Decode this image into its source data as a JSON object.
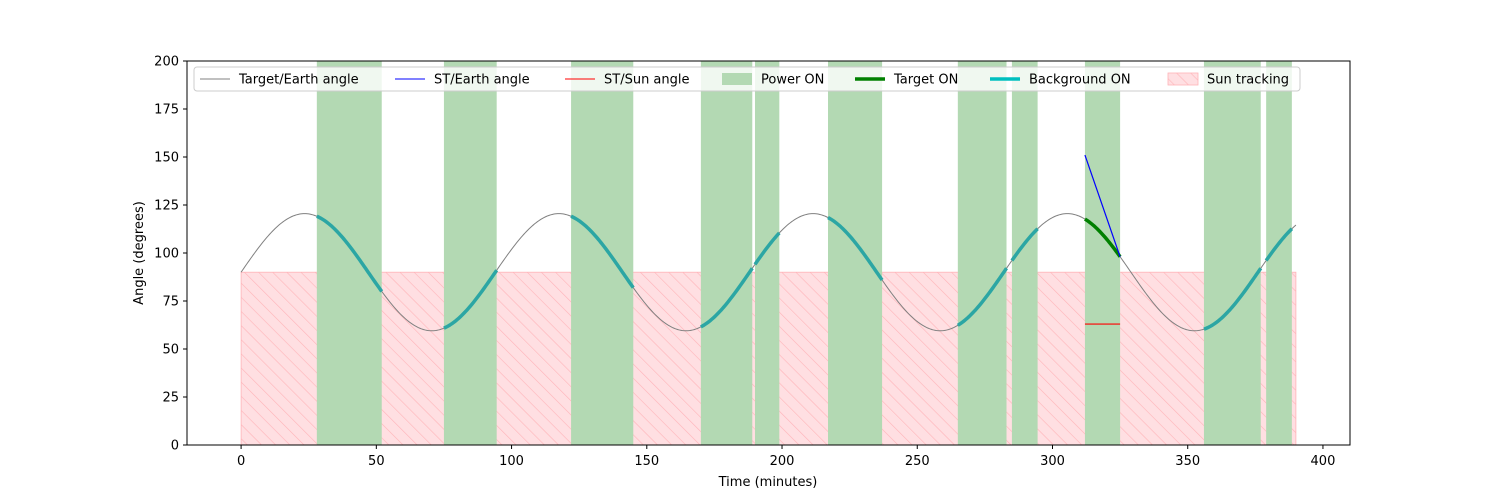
{
  "chart_data": {
    "type": "line",
    "xlabel": "Time (minutes)",
    "ylabel": "Angle (degrees)",
    "xlim": [
      -20,
      410
    ],
    "ylim": [
      0,
      200
    ],
    "xticks": [
      0,
      50,
      100,
      150,
      200,
      250,
      300,
      350,
      400
    ],
    "yticks": [
      0,
      25,
      50,
      75,
      100,
      125,
      150,
      175,
      200
    ],
    "grid": false,
    "legend_position": "top",
    "target_earth_curve": {
      "mean": 90,
      "amplitude": 30.5,
      "period": 94,
      "phase_shift": 0,
      "x_start": 0,
      "x_end": 390,
      "color": "#808080"
    },
    "power_on_intervals": [
      [
        28,
        52
      ],
      [
        75,
        94.5
      ],
      [
        122,
        145
      ],
      [
        170,
        189
      ],
      [
        190,
        199
      ],
      [
        217,
        237
      ],
      [
        265,
        283
      ],
      [
        285,
        294.5
      ],
      [
        312,
        325
      ],
      [
        356,
        377
      ],
      [
        379,
        388.5
      ]
    ],
    "target_on_intervals": [
      [
        312,
        325
      ]
    ],
    "background_on_intervals": [
      [
        28,
        52
      ],
      [
        75,
        94.5
      ],
      [
        122,
        145
      ],
      [
        170,
        189
      ],
      [
        190,
        199
      ],
      [
        217,
        237
      ],
      [
        265,
        283
      ],
      [
        285,
        294.5
      ],
      [
        356,
        377
      ],
      [
        379,
        388.5
      ]
    ],
    "sun_tracking": {
      "x": [
        0,
        390
      ],
      "y": [
        0,
        90
      ]
    },
    "st_earth_line": {
      "x": [
        312,
        325
      ],
      "y": [
        151,
        98
      ]
    },
    "st_sun_line": {
      "x": [
        312,
        325
      ],
      "y": [
        63,
        63
      ]
    },
    "colors": {
      "target_earth": "#808080",
      "st_earth": "#0000ff",
      "st_sun": "#ff0000",
      "power_on": "#b3d9b3",
      "target_on": "#008000",
      "background_on": "#2ca6a4",
      "background_on_legend": "#00bfbf",
      "sun_tracking_fill": "#ffdfe2",
      "sun_tracking_hatch": "#ffb3b8"
    },
    "legend": [
      {
        "label": "Target/Earth angle",
        "kind": "line",
        "color": "#808080",
        "width": 1
      },
      {
        "label": "ST/Earth angle",
        "kind": "line",
        "color": "#0000ff",
        "width": 1
      },
      {
        "label": "ST/Sun angle",
        "kind": "line",
        "color": "#ff0000",
        "width": 1
      },
      {
        "label": "Power ON",
        "kind": "patch",
        "color": "#b3d9b3"
      },
      {
        "label": "Target ON",
        "kind": "line",
        "color": "#008000",
        "width": 3.5
      },
      {
        "label": "Background ON",
        "kind": "line",
        "color": "#00bfbf",
        "width": 3.5
      },
      {
        "label": "Sun tracking",
        "kind": "hatch",
        "color": "#ffdfe2"
      }
    ]
  }
}
